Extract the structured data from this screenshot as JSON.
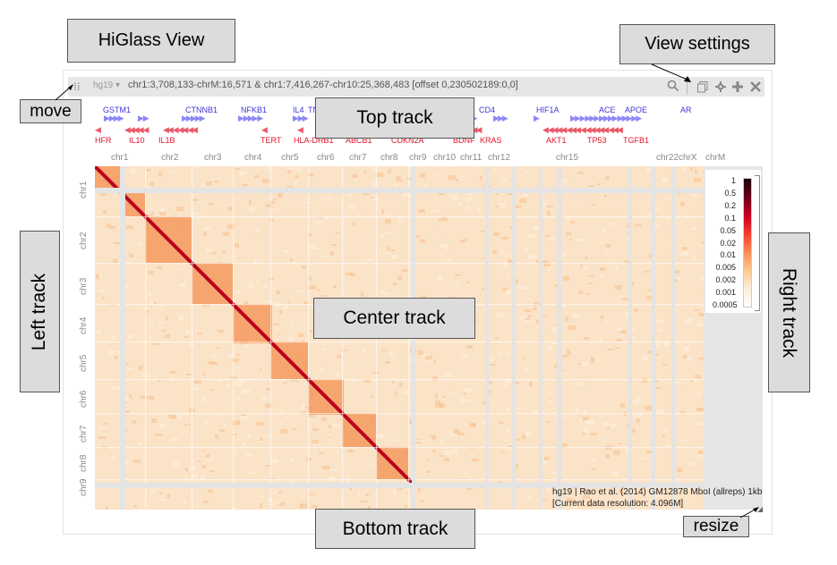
{
  "annotations": {
    "view_title": "HiGlass View",
    "view_settings": "View settings",
    "move": "move",
    "top_track": "Top track",
    "left_track": "Left track",
    "center_track": "Center track",
    "right_track": "Right track",
    "bottom_track": "Bottom track",
    "resize": "resize"
  },
  "header": {
    "assembly": "hg19",
    "location": "chr1:3,708,133-chrM:16,571 & chr1:7,416,267-chr10:25,368,483 [offset 0,230502189:0,0]"
  },
  "icons": {
    "drag": "drag-handle-icon",
    "search": "search-icon",
    "copy": "copy-icon",
    "settings": "gear-icon",
    "add": "plus-icon",
    "close": "close-icon"
  },
  "genes_plus": [
    "GSTM1",
    "CTNNB1",
    "NFKB1",
    "IL4",
    "TN",
    "CD4",
    "HIF1A",
    "ACE",
    "APOE",
    "AR"
  ],
  "genes_minus": [
    "HFR",
    "IL10",
    "IL1B",
    "TERT",
    "HLA-DRB1",
    "ABCB1",
    "CDKN2A",
    "BDNF",
    "KRAS",
    "AKT1",
    "TP53",
    "TGFB1"
  ],
  "chromosomes_top": [
    "chr1",
    "chr2",
    "chr3",
    "chr4",
    "chr5",
    "chr6",
    "chr7",
    "chr8",
    "chr9",
    "chr10",
    "chr11",
    "chr12",
    "chr15",
    "chr22chrX",
    "chrM"
  ],
  "chromosomes_left": [
    "chr1",
    "chr2",
    "chr3",
    "chr4",
    "chr5",
    "chr6",
    "chr7",
    "chr8",
    "chr9"
  ],
  "colorbar_labels": [
    "1",
    "0.5",
    "0.2",
    "0.1",
    "0.05",
    "0.02",
    "0.01",
    "0.005",
    "0.002",
    "0.001",
    "0.0005"
  ],
  "footer": {
    "dataset": "hg19 | Rao et al. (2014) GM12878 MboI (allreps) 1kb",
    "resolution": "[Current data resolution: 4.096M]"
  },
  "colors": {
    "heatmap_low": "#fdf3e3",
    "heatmap_mid": "#f7a36b",
    "heatmap_high": "#b9001d",
    "gene_plus": "#3f36d8",
    "gene_minus": "#e0142a"
  }
}
